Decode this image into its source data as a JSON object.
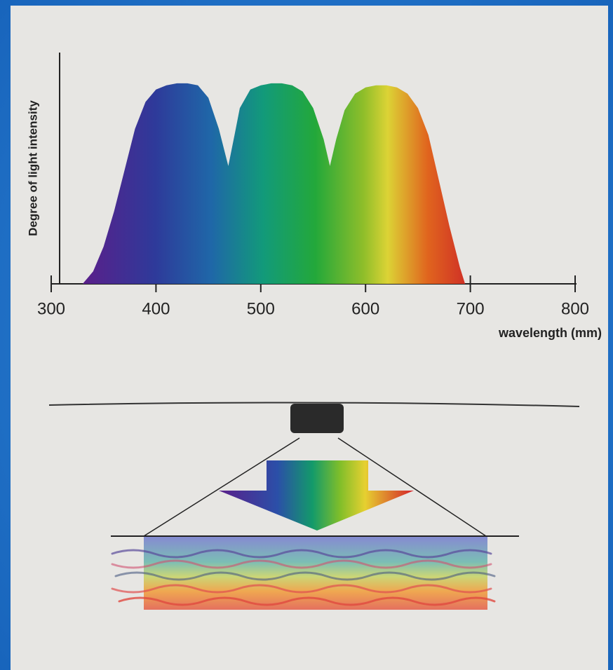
{
  "chart_data": {
    "type": "area",
    "y_label": "Degree of light intensity",
    "x_label": "wavelength (mm)",
    "x": [
      330,
      340,
      350,
      360,
      370,
      380,
      390,
      400,
      410,
      420,
      430,
      440,
      450,
      460,
      469,
      475,
      480,
      490,
      500,
      510,
      520,
      530,
      540,
      550,
      560,
      566,
      572,
      580,
      590,
      600,
      610,
      620,
      630,
      640,
      650,
      660,
      670,
      680,
      690,
      695
    ],
    "values": [
      0,
      6,
      18,
      35,
      55,
      75,
      88,
      94,
      96,
      97,
      97,
      96,
      90,
      75,
      57,
      72,
      85,
      94,
      96,
      97,
      97,
      96,
      93,
      85,
      70,
      57,
      70,
      84,
      92,
      95,
      96,
      96,
      95,
      92,
      85,
      72,
      50,
      28,
      8,
      0
    ],
    "xlim": [
      300,
      800
    ],
    "xticks": [
      300,
      400,
      500,
      600,
      700,
      800
    ],
    "ylim": [
      0,
      100
    ]
  }
}
